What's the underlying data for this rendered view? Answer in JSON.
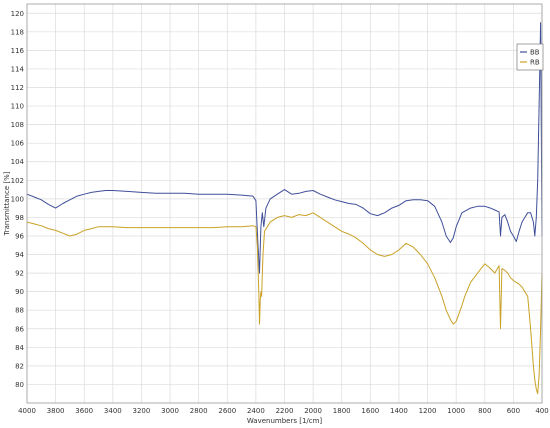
{
  "chart_data": {
    "type": "line",
    "title": "",
    "xlabel": "Wavenumbers [1/cm]",
    "ylabel": "Transmittance [%]",
    "xlim": [
      4000,
      400
    ],
    "ylim": [
      78,
      121
    ],
    "x_reversed": true,
    "grid": true,
    "legend_position": "top-right",
    "x_ticks": [
      4000,
      3800,
      3600,
      3400,
      3200,
      3000,
      2800,
      2600,
      2400,
      2200,
      2000,
      1800,
      1600,
      1400,
      1200,
      1000,
      800,
      600,
      400
    ],
    "y_ticks": [
      80,
      82,
      84,
      86,
      88,
      90,
      92,
      94,
      96,
      98,
      100,
      102,
      104,
      106,
      108,
      110,
      112,
      114,
      116,
      118,
      120
    ],
    "series": [
      {
        "name": "BB",
        "color": "#3f4f9a",
        "x": [
          4000,
          3950,
          3900,
          3850,
          3800,
          3750,
          3700,
          3650,
          3600,
          3550,
          3500,
          3450,
          3400,
          3300,
          3200,
          3100,
          3000,
          2900,
          2800,
          2700,
          2600,
          2500,
          2420,
          2400,
          2385,
          2375,
          2365,
          2355,
          2345,
          2330,
          2300,
          2250,
          2200,
          2150,
          2100,
          2050,
          2000,
          1950,
          1900,
          1850,
          1800,
          1750,
          1700,
          1650,
          1600,
          1550,
          1500,
          1450,
          1400,
          1350,
          1300,
          1250,
          1200,
          1150,
          1100,
          1070,
          1040,
          1020,
          1000,
          960,
          900,
          850,
          800,
          760,
          730,
          700,
          690,
          680,
          660,
          640,
          620,
          600,
          580,
          560,
          540,
          520,
          500,
          480,
          460,
          450,
          440,
          430,
          420,
          410,
          400
        ],
        "y": [
          100.5,
          100.2,
          99.9,
          99.4,
          99.0,
          99.5,
          99.9,
          100.3,
          100.5,
          100.7,
          100.8,
          100.9,
          100.9,
          100.8,
          100.7,
          100.6,
          100.6,
          100.6,
          100.5,
          100.5,
          100.5,
          100.4,
          100.3,
          99.8,
          95.0,
          92.0,
          97.0,
          98.5,
          97.0,
          99.0,
          100.0,
          100.5,
          101.0,
          100.5,
          100.6,
          100.8,
          100.9,
          100.5,
          100.2,
          99.9,
          99.7,
          99.5,
          99.4,
          99.0,
          98.4,
          98.2,
          98.5,
          99.0,
          99.3,
          99.8,
          99.9,
          99.9,
          99.8,
          99.2,
          97.5,
          96.0,
          95.3,
          95.8,
          97.0,
          98.5,
          99.0,
          99.2,
          99.2,
          99.0,
          98.8,
          98.6,
          96.0,
          98.0,
          98.3,
          97.5,
          96.5,
          96.0,
          95.4,
          96.5,
          97.5,
          98.0,
          98.5,
          98.5,
          97.5,
          96.0,
          98.0,
          102.0,
          110.0,
          119.0,
          96.0
        ]
      },
      {
        "name": "RB",
        "color": "#c9a227",
        "x": [
          4000,
          3950,
          3900,
          3850,
          3800,
          3750,
          3700,
          3650,
          3600,
          3550,
          3500,
          3450,
          3400,
          3300,
          3200,
          3100,
          3000,
          2900,
          2800,
          2700,
          2600,
          2500,
          2420,
          2400,
          2390,
          2380,
          2375,
          2370,
          2365,
          2360,
          2350,
          2340,
          2300,
          2250,
          2200,
          2150,
          2100,
          2050,
          2000,
          1950,
          1900,
          1850,
          1800,
          1750,
          1700,
          1650,
          1600,
          1550,
          1500,
          1450,
          1400,
          1350,
          1300,
          1250,
          1200,
          1150,
          1100,
          1070,
          1040,
          1020,
          1000,
          960,
          940,
          900,
          850,
          800,
          760,
          730,
          700,
          690,
          680,
          660,
          640,
          620,
          600,
          580,
          560,
          540,
          520,
          500,
          480,
          460,
          450,
          440,
          430,
          420,
          410,
          400
        ],
        "y": [
          97.5,
          97.3,
          97.1,
          96.8,
          96.6,
          96.3,
          96.0,
          96.2,
          96.6,
          96.8,
          97.0,
          97.0,
          97.0,
          96.9,
          96.9,
          96.9,
          96.9,
          96.9,
          96.9,
          96.9,
          97.0,
          97.0,
          97.1,
          97.0,
          95.0,
          90.0,
          86.5,
          89.0,
          90.0,
          89.5,
          94.0,
          96.5,
          97.5,
          98.0,
          98.2,
          98.0,
          98.3,
          98.2,
          98.5,
          98.0,
          97.5,
          97.0,
          96.5,
          96.2,
          95.8,
          95.2,
          94.5,
          94.0,
          93.8,
          94.0,
          94.5,
          95.2,
          94.8,
          94.0,
          93.0,
          91.5,
          89.5,
          88.0,
          87.0,
          86.5,
          86.8,
          88.5,
          89.5,
          91.0,
          92.0,
          93.0,
          92.5,
          92.0,
          92.8,
          86.0,
          92.5,
          92.3,
          92.0,
          91.5,
          91.2,
          91.0,
          90.8,
          90.5,
          90.0,
          89.5,
          86.0,
          82.0,
          80.5,
          79.5,
          79.0,
          81.0,
          86.0,
          92.0
        ]
      }
    ]
  }
}
